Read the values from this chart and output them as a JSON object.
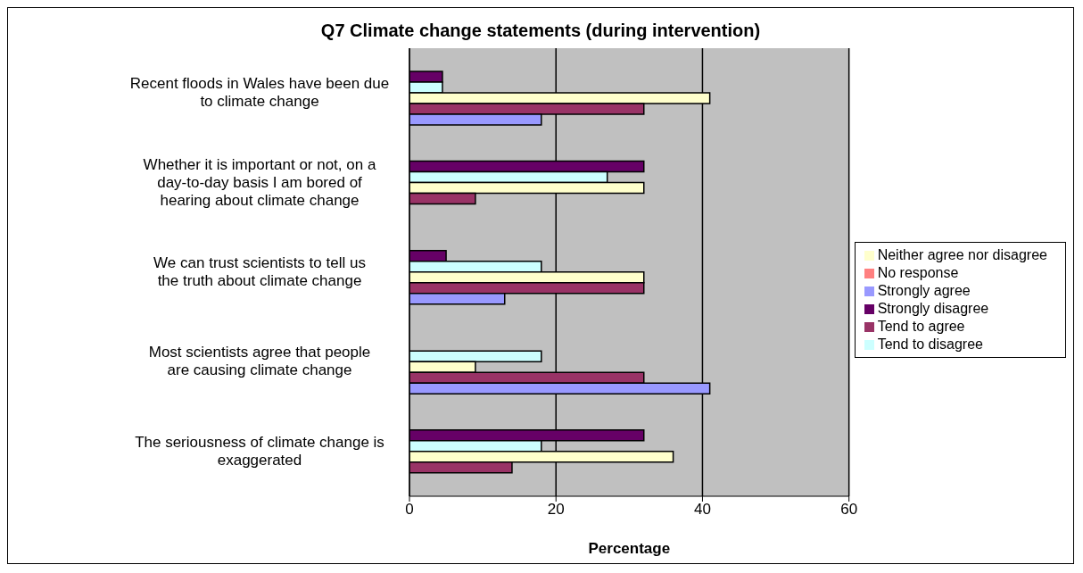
{
  "chart_data": {
    "type": "bar",
    "orientation": "horizontal",
    "title": "Q7 Climate change statements (during intervention)",
    "xlabel": "Percentage",
    "categories": [
      "Recent floods in Wales have been due to climate change",
      "Whether it is important or not, on a day-to-day basis I am bored of hearing about climate change",
      "We can trust scientists to tell us the truth about climate change",
      "Most scientists agree that people are causing climate change",
      "The seriousness of climate change is exaggerated"
    ],
    "series": [
      {
        "name": "No response",
        "color": "#ff8080",
        "values": [
          0,
          0,
          0,
          0,
          0
        ]
      },
      {
        "name": "Strongly disagree",
        "color": "#660066",
        "values": [
          4.5,
          32,
          5,
          0,
          32
        ]
      },
      {
        "name": "Tend to disagree",
        "color": "#ccffff",
        "values": [
          4.5,
          27,
          18,
          18,
          18
        ]
      },
      {
        "name": "Neither agree nor disagree",
        "color": "#ffffcc",
        "values": [
          41,
          32,
          32,
          9,
          36
        ]
      },
      {
        "name": "Tend to agree",
        "color": "#993366",
        "values": [
          32,
          9,
          32,
          32,
          14
        ]
      },
      {
        "name": "Strongly agree",
        "color": "#9999ff",
        "values": [
          18,
          0,
          13,
          41,
          0
        ]
      }
    ],
    "xlim": [
      0,
      60
    ],
    "xticks": [
      0,
      20,
      40,
      60
    ],
    "grid": "x",
    "legend": "right"
  }
}
